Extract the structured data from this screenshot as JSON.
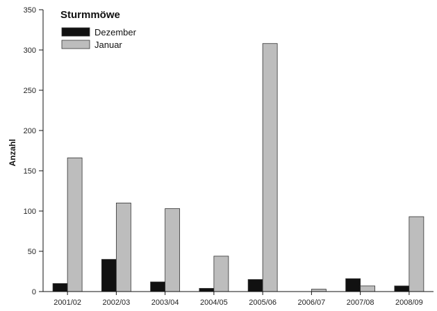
{
  "chart_data": {
    "type": "bar",
    "title": "Sturmmöwe",
    "xlabel": "",
    "ylabel": "Anzahl",
    "categories": [
      "2001/02",
      "2002/03",
      "2003/04",
      "2004/05",
      "2005/06",
      "2006/07",
      "2007/08",
      "2008/09"
    ],
    "series": [
      {
        "name": "Dezember",
        "values": [
          10,
          40,
          12,
          4,
          15,
          0,
          16,
          7
        ],
        "color": "#111111"
      },
      {
        "name": "Januar",
        "values": [
          166,
          110,
          103,
          44,
          308,
          3,
          7,
          93
        ],
        "color": "#bdbdbd"
      }
    ],
    "ylim": [
      0,
      350
    ],
    "yticks": [
      0,
      50,
      100,
      150,
      200,
      250,
      300,
      350
    ],
    "grid": false,
    "legend_position": "top-left"
  }
}
